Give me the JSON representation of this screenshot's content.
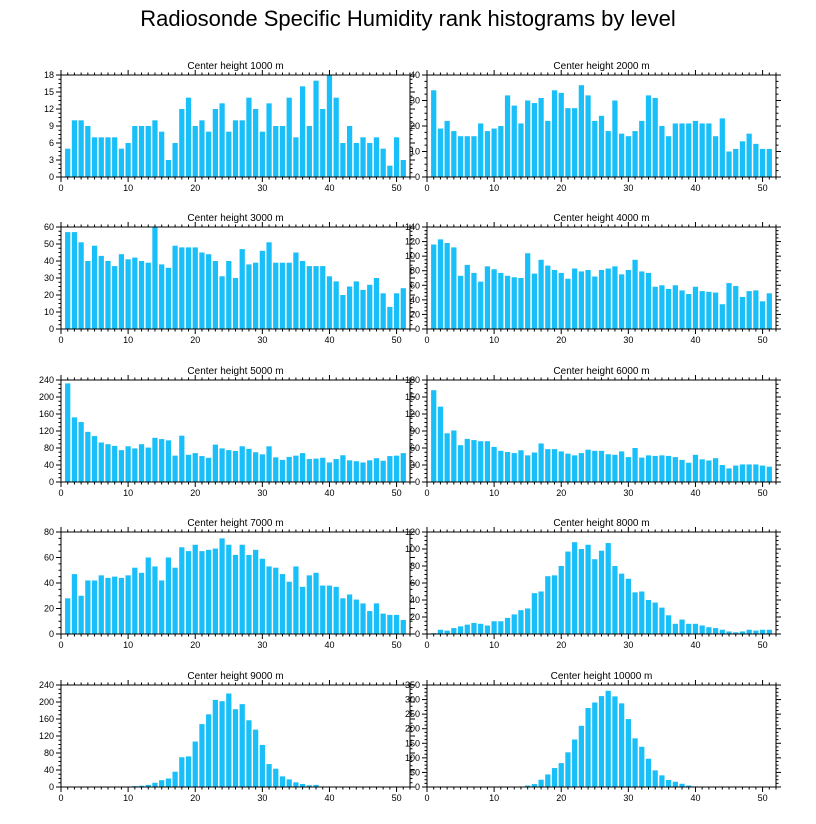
{
  "title": "Radiosonde Specific Humidity rank histograms by level",
  "colors": {
    "bar": "#19bff8",
    "axis": "#000000",
    "background": "#ffffff"
  },
  "chart_data": [
    {
      "type": "bar",
      "title": "Center height 1000 m",
      "ylim": [
        0,
        18
      ],
      "yticks": [
        0,
        3,
        6,
        9,
        12,
        15,
        18
      ],
      "xticks": [
        0,
        10,
        20,
        30,
        40,
        50
      ],
      "xlim": [
        0,
        52
      ],
      "x": [
        1,
        2,
        3,
        4,
        5,
        6,
        7,
        8,
        9,
        10,
        11,
        12,
        13,
        14,
        15,
        16,
        17,
        18,
        19,
        20,
        21,
        22,
        23,
        24,
        25,
        26,
        27,
        28,
        29,
        30,
        31,
        32,
        33,
        34,
        35,
        36,
        37,
        38,
        39,
        40,
        41,
        42,
        43,
        44,
        45,
        46,
        47,
        48,
        49,
        50,
        51
      ],
      "values": [
        5,
        10,
        10,
        9,
        7,
        7,
        7,
        7,
        5,
        6,
        9,
        9,
        9,
        10,
        8,
        3,
        6,
        12,
        14,
        9,
        10,
        8,
        12,
        13,
        8,
        10,
        10,
        14,
        12,
        8,
        13,
        9,
        9,
        14,
        7,
        16,
        9,
        17,
        12,
        18,
        14,
        6,
        9,
        6,
        7,
        6,
        7,
        5,
        2,
        7,
        3
      ]
    },
    {
      "type": "bar",
      "title": "Center height 2000 m",
      "ylim": [
        0,
        40
      ],
      "yticks": [
        0,
        10,
        20,
        30,
        40
      ],
      "xticks": [
        0,
        10,
        20,
        30,
        40,
        50
      ],
      "xlim": [
        0,
        52
      ],
      "x": [
        1,
        2,
        3,
        4,
        5,
        6,
        7,
        8,
        9,
        10,
        11,
        12,
        13,
        14,
        15,
        16,
        17,
        18,
        19,
        20,
        21,
        22,
        23,
        24,
        25,
        26,
        27,
        28,
        29,
        30,
        31,
        32,
        33,
        34,
        35,
        36,
        37,
        38,
        39,
        40,
        41,
        42,
        43,
        44,
        45,
        46,
        47,
        48,
        49,
        50,
        51
      ],
      "values": [
        34,
        19,
        22,
        18,
        16,
        16,
        16,
        21,
        18,
        19,
        20,
        32,
        28,
        21,
        30,
        29,
        31,
        22,
        34,
        33,
        27,
        27,
        36,
        32,
        22,
        24,
        18,
        30,
        17,
        16,
        18,
        22,
        32,
        31,
        20,
        16,
        21,
        21,
        21,
        22,
        21,
        21,
        16,
        23,
        10,
        11,
        14,
        17,
        13,
        11,
        11
      ]
    },
    {
      "type": "bar",
      "title": "Center height 3000 m",
      "ylim": [
        0,
        60
      ],
      "yticks": [
        0,
        10,
        20,
        30,
        40,
        50,
        60
      ],
      "xticks": [
        0,
        10,
        20,
        30,
        40,
        50
      ],
      "xlim": [
        0,
        52
      ],
      "x": [
        1,
        2,
        3,
        4,
        5,
        6,
        7,
        8,
        9,
        10,
        11,
        12,
        13,
        14,
        15,
        16,
        17,
        18,
        19,
        20,
        21,
        22,
        23,
        24,
        25,
        26,
        27,
        28,
        29,
        30,
        31,
        32,
        33,
        34,
        35,
        36,
        37,
        38,
        39,
        40,
        41,
        42,
        43,
        44,
        45,
        46,
        47,
        48,
        49,
        50,
        51
      ],
      "values": [
        57,
        57,
        51,
        40,
        49,
        43,
        40,
        37,
        44,
        41,
        42,
        40,
        39,
        60,
        38,
        36,
        49,
        48,
        48,
        48,
        45,
        44,
        40,
        31,
        40,
        30,
        47,
        38,
        39,
        46,
        51,
        39,
        39,
        39,
        45,
        40,
        37,
        37,
        37,
        31,
        28,
        20,
        25,
        28,
        23,
        26,
        30,
        21,
        13,
        21,
        24
      ]
    },
    {
      "type": "bar",
      "title": "Center height 4000 m",
      "ylim": [
        0,
        140
      ],
      "yticks": [
        0,
        20,
        40,
        60,
        80,
        100,
        120,
        140
      ],
      "xticks": [
        0,
        10,
        20,
        30,
        40,
        50
      ],
      "xlim": [
        0,
        52
      ],
      "x": [
        1,
        2,
        3,
        4,
        5,
        6,
        7,
        8,
        9,
        10,
        11,
        12,
        13,
        14,
        15,
        16,
        17,
        18,
        19,
        20,
        21,
        22,
        23,
        24,
        25,
        26,
        27,
        28,
        29,
        30,
        31,
        32,
        33,
        34,
        35,
        36,
        37,
        38,
        39,
        40,
        41,
        42,
        43,
        44,
        45,
        46,
        47,
        48,
        49,
        50,
        51
      ],
      "values": [
        116,
        123,
        118,
        112,
        73,
        88,
        77,
        65,
        86,
        82,
        77,
        73,
        71,
        70,
        104,
        76,
        95,
        87,
        81,
        77,
        69,
        83,
        79,
        81,
        72,
        81,
        83,
        86,
        75,
        81,
        95,
        79,
        77,
        58,
        60,
        55,
        60,
        53,
        48,
        58,
        52,
        51,
        50,
        34,
        63,
        59,
        44,
        52,
        53,
        38,
        49
      ]
    },
    {
      "type": "bar",
      "title": "Center height 5000 m",
      "ylim": [
        0,
        240
      ],
      "yticks": [
        0,
        40,
        80,
        120,
        160,
        200,
        240
      ],
      "xticks": [
        0,
        10,
        20,
        30,
        40,
        50
      ],
      "xlim": [
        0,
        52
      ],
      "x": [
        1,
        2,
        3,
        4,
        5,
        6,
        7,
        8,
        9,
        10,
        11,
        12,
        13,
        14,
        15,
        16,
        17,
        18,
        19,
        20,
        21,
        22,
        23,
        24,
        25,
        26,
        27,
        28,
        29,
        30,
        31,
        32,
        33,
        34,
        35,
        36,
        37,
        38,
        39,
        40,
        41,
        42,
        43,
        44,
        45,
        46,
        47,
        48,
        49,
        50,
        51
      ],
      "values": [
        232,
        152,
        141,
        118,
        108,
        93,
        89,
        85,
        75,
        84,
        79,
        89,
        81,
        104,
        101,
        98,
        62,
        109,
        64,
        68,
        61,
        57,
        88,
        79,
        75,
        73,
        84,
        78,
        70,
        65,
        84,
        58,
        52,
        59,
        62,
        68,
        54,
        55,
        57,
        46,
        54,
        63,
        51,
        49,
        46,
        51,
        56,
        50,
        61,
        62,
        68
      ]
    },
    {
      "type": "bar",
      "title": "Center height 6000 m",
      "ylim": [
        0,
        180
      ],
      "yticks": [
        0,
        30,
        60,
        90,
        120,
        150,
        180
      ],
      "xticks": [
        0,
        10,
        20,
        30,
        40,
        50
      ],
      "xlim": [
        0,
        52
      ],
      "x": [
        1,
        2,
        3,
        4,
        5,
        6,
        7,
        8,
        9,
        10,
        11,
        12,
        13,
        14,
        15,
        16,
        17,
        18,
        19,
        20,
        21,
        22,
        23,
        24,
        25,
        26,
        27,
        28,
        29,
        30,
        31,
        32,
        33,
        34,
        35,
        36,
        37,
        38,
        39,
        40,
        41,
        42,
        43,
        44,
        45,
        46,
        47,
        48,
        49,
        50,
        51
      ],
      "values": [
        162,
        133,
        86,
        91,
        65,
        76,
        74,
        72,
        72,
        62,
        55,
        53,
        51,
        56,
        47,
        52,
        68,
        58,
        58,
        54,
        50,
        47,
        51,
        57,
        55,
        55,
        49,
        48,
        54,
        44,
        60,
        43,
        47,
        46,
        47,
        46,
        44,
        39,
        34,
        48,
        40,
        38,
        42,
        30,
        24,
        29,
        31,
        31,
        31,
        29,
        27
      ]
    },
    {
      "type": "bar",
      "title": "Center height 7000 m",
      "ylim": [
        0,
        80
      ],
      "yticks": [
        0,
        20,
        40,
        60,
        80
      ],
      "xticks": [
        0,
        10,
        20,
        30,
        40,
        50
      ],
      "xlim": [
        0,
        52
      ],
      "x": [
        1,
        2,
        3,
        4,
        5,
        6,
        7,
        8,
        9,
        10,
        11,
        12,
        13,
        14,
        15,
        16,
        17,
        18,
        19,
        20,
        21,
        22,
        23,
        24,
        25,
        26,
        27,
        28,
        29,
        30,
        31,
        32,
        33,
        34,
        35,
        36,
        37,
        38,
        39,
        40,
        41,
        42,
        43,
        44,
        45,
        46,
        47,
        48,
        49,
        50,
        51
      ],
      "values": [
        28,
        47,
        30,
        42,
        42,
        46,
        44,
        45,
        44,
        46,
        52,
        48,
        60,
        53,
        42,
        60,
        52,
        68,
        65,
        70,
        65,
        66,
        67,
        75,
        70,
        62,
        70,
        62,
        66,
        59,
        53,
        52,
        47,
        41,
        53,
        37,
        46,
        48,
        38,
        38,
        37,
        28,
        31,
        27,
        24,
        18,
        24,
        16,
        15,
        15,
        11
      ]
    },
    {
      "type": "bar",
      "title": "Center height 8000 m",
      "ylim": [
        0,
        120
      ],
      "yticks": [
        0,
        20,
        40,
        60,
        80,
        100,
        120
      ],
      "xticks": [
        0,
        10,
        20,
        30,
        40,
        50
      ],
      "xlim": [
        0,
        52
      ],
      "x": [
        1,
        2,
        3,
        4,
        5,
        6,
        7,
        8,
        9,
        10,
        11,
        12,
        13,
        14,
        15,
        16,
        17,
        18,
        19,
        20,
        21,
        22,
        23,
        24,
        25,
        26,
        27,
        28,
        29,
        30,
        31,
        32,
        33,
        34,
        35,
        36,
        37,
        38,
        39,
        40,
        41,
        42,
        43,
        44,
        45,
        46,
        47,
        48,
        49,
        50,
        51
      ],
      "values": [
        1,
        5,
        4,
        7,
        9,
        11,
        13,
        12,
        10,
        15,
        15,
        19,
        23,
        28,
        30,
        48,
        50,
        68,
        69,
        80,
        97,
        108,
        100,
        105,
        88,
        98,
        107,
        80,
        71,
        65,
        49,
        50,
        40,
        37,
        31,
        22,
        12,
        17,
        12,
        12,
        10,
        8,
        7,
        5,
        3,
        2,
        3,
        5,
        4,
        5,
        5
      ]
    },
    {
      "type": "bar",
      "title": "Center height 9000 m",
      "ylim": [
        0,
        240
      ],
      "yticks": [
        0,
        40,
        80,
        120,
        160,
        200,
        240
      ],
      "xticks": [
        0,
        10,
        20,
        30,
        40,
        50
      ],
      "xlim": [
        0,
        52
      ],
      "x": [
        1,
        2,
        3,
        4,
        5,
        6,
        7,
        8,
        9,
        10,
        11,
        12,
        13,
        14,
        15,
        16,
        17,
        18,
        19,
        20,
        21,
        22,
        23,
        24,
        25,
        26,
        27,
        28,
        29,
        30,
        31,
        32,
        33,
        34,
        35,
        36,
        37,
        38,
        39,
        40,
        41,
        42,
        43,
        44,
        45,
        46,
        47,
        48,
        49,
        50,
        51
      ],
      "values": [
        0,
        0,
        0,
        0,
        0,
        0,
        0,
        0,
        0,
        1,
        2,
        3,
        5,
        10,
        16,
        20,
        36,
        70,
        72,
        107,
        148,
        171,
        205,
        202,
        220,
        183,
        195,
        157,
        135,
        99,
        54,
        43,
        25,
        18,
        11,
        7,
        4,
        5,
        1,
        1,
        0,
        0,
        0,
        0,
        0,
        0,
        0,
        0,
        0,
        0,
        0
      ]
    },
    {
      "type": "bar",
      "title": "Center height 10000 m",
      "ylim": [
        0,
        350
      ],
      "yticks": [
        0,
        50,
        100,
        150,
        200,
        250,
        300,
        350
      ],
      "xticks": [
        0,
        10,
        20,
        30,
        40,
        50
      ],
      "xlim": [
        0,
        52
      ],
      "x": [
        1,
        2,
        3,
        4,
        5,
        6,
        7,
        8,
        9,
        10,
        11,
        12,
        13,
        14,
        15,
        16,
        17,
        18,
        19,
        20,
        21,
        22,
        23,
        24,
        25,
        26,
        27,
        28,
        29,
        30,
        31,
        32,
        33,
        34,
        35,
        36,
        37,
        38,
        39,
        40,
        41,
        42,
        43,
        44,
        45,
        46,
        47,
        48,
        49,
        50,
        51
      ],
      "values": [
        0,
        0,
        0,
        0,
        0,
        0,
        0,
        0,
        0,
        0,
        0,
        0,
        0,
        0,
        5,
        10,
        25,
        43,
        65,
        82,
        119,
        163,
        210,
        271,
        290,
        312,
        330,
        311,
        287,
        233,
        167,
        138,
        97,
        57,
        40,
        24,
        18,
        11,
        5,
        2,
        1,
        0,
        0,
        0,
        0,
        0,
        0,
        0,
        0,
        0,
        0
      ]
    }
  ]
}
